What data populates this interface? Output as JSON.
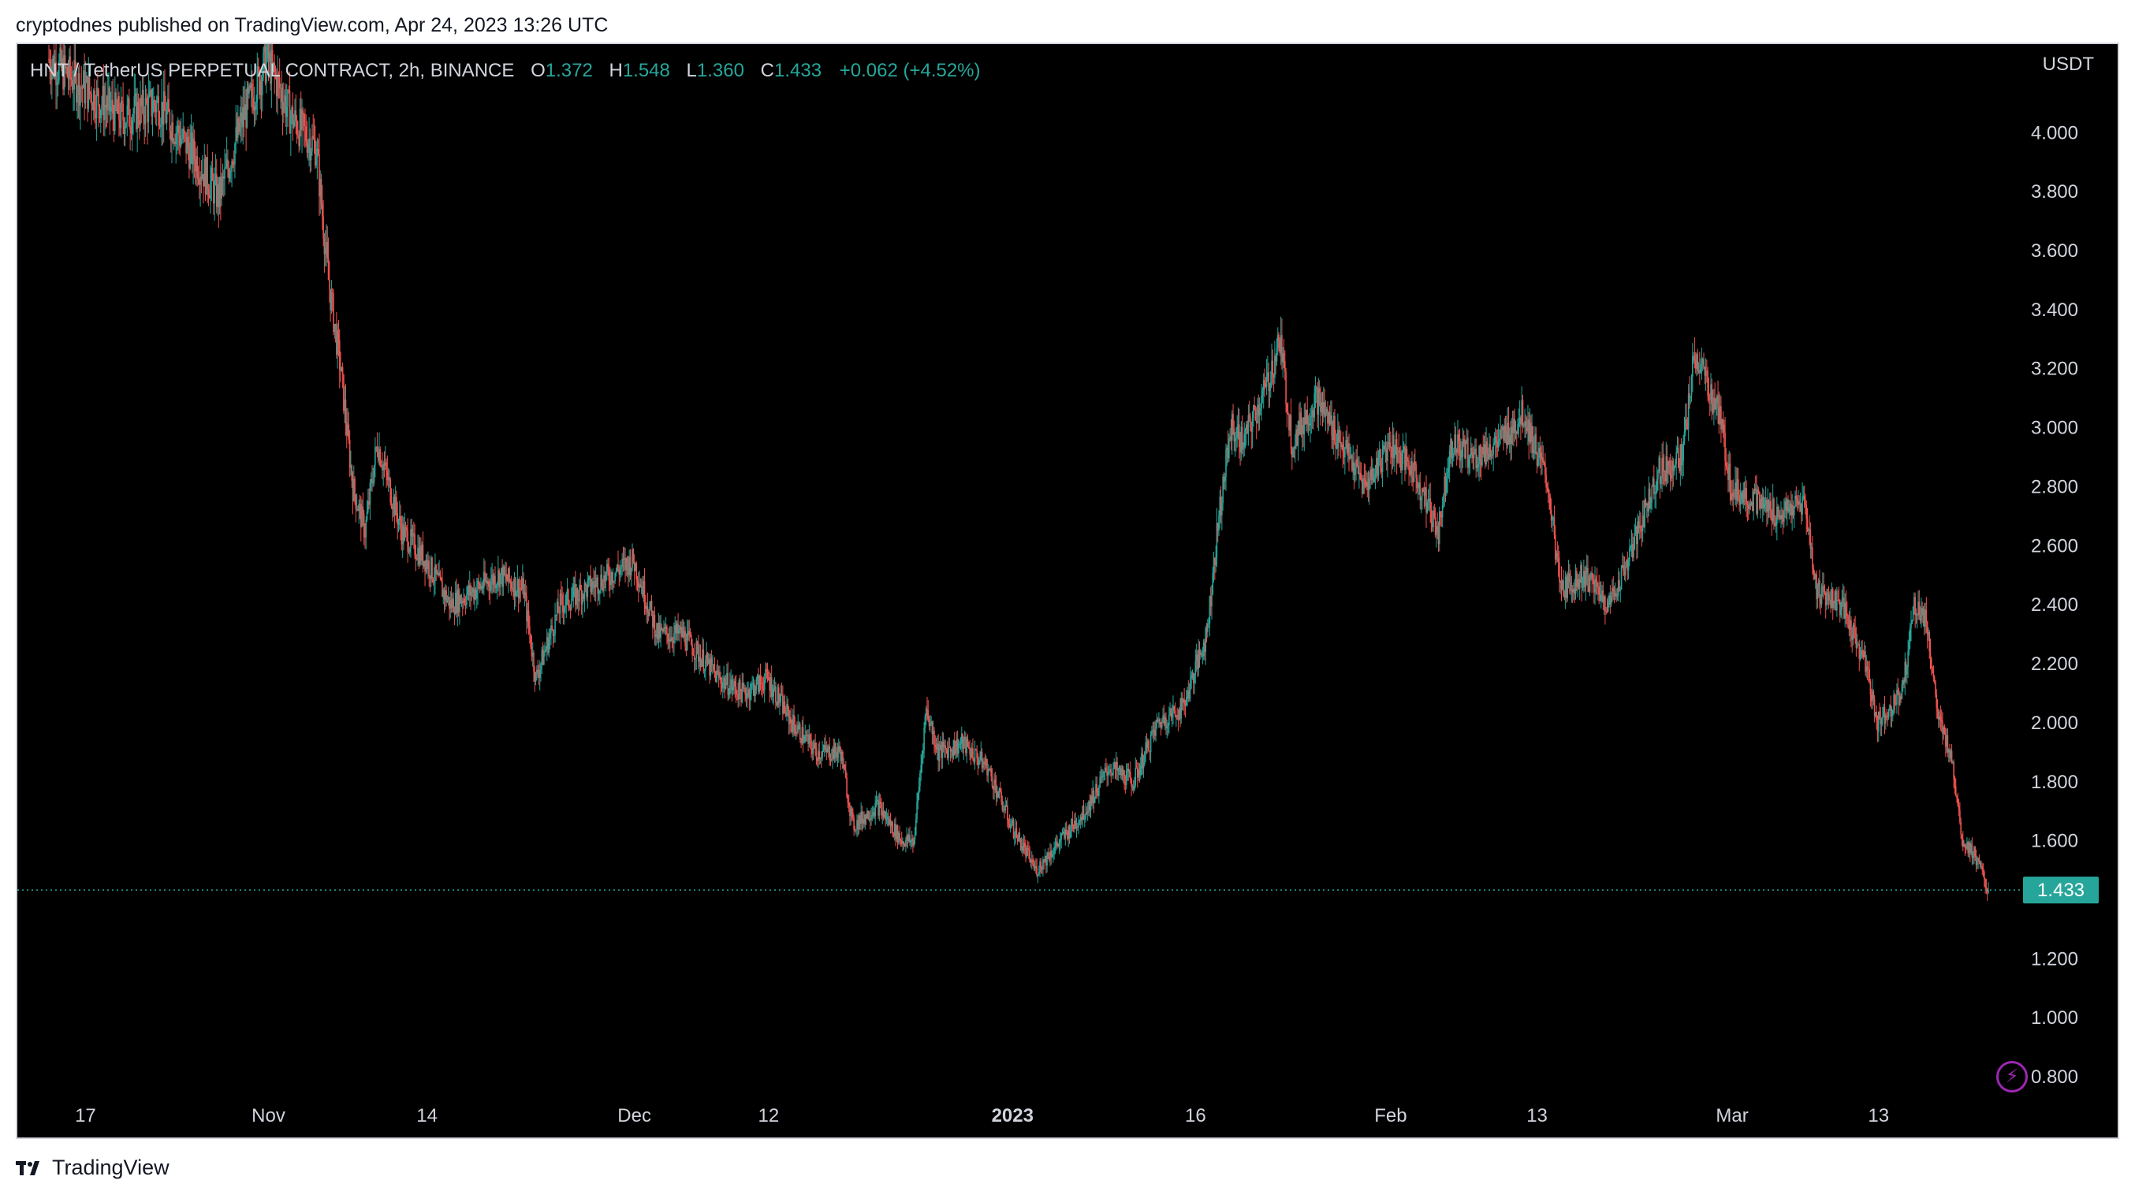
{
  "publisher": "cryptodnes published on TradingView.com, Apr 24, 2023 13:26 UTC",
  "footer": {
    "brand": "TradingView"
  },
  "colors": {
    "up": "#26a69a",
    "down": "#ef5350",
    "background": "#000000",
    "text": "#d1d4dc"
  },
  "chart_data": {
    "type": "candlestick",
    "symbol": "HNT / TetherUS PERPETUAL CONTRACT, 2h, BINANCE",
    "ohlc": {
      "o_label": "O",
      "o": "1.372",
      "h_label": "H",
      "h": "1.548",
      "l_label": "L",
      "l": "1.360",
      "c_label": "C",
      "c": "1.433",
      "change": "+0.062 (+4.52%)"
    },
    "currency": "USDT",
    "last_price": "1.433",
    "last_price_value": 1.433,
    "ylim": [
      0.72,
      4.3
    ],
    "y_ticks": [
      {
        "value": 4.0,
        "label": "4.000"
      },
      {
        "value": 3.8,
        "label": "3.800"
      },
      {
        "value": 3.6,
        "label": "3.600"
      },
      {
        "value": 3.4,
        "label": "3.400"
      },
      {
        "value": 3.2,
        "label": "3.200"
      },
      {
        "value": 3.0,
        "label": "3.000"
      },
      {
        "value": 2.8,
        "label": "2.800"
      },
      {
        "value": 2.6,
        "label": "2.600"
      },
      {
        "value": 2.4,
        "label": "2.400"
      },
      {
        "value": 2.2,
        "label": "2.200"
      },
      {
        "value": 2.0,
        "label": "2.000"
      },
      {
        "value": 1.8,
        "label": "1.800"
      },
      {
        "value": 1.6,
        "label": "1.600"
      },
      {
        "value": 1.2,
        "label": "1.200"
      },
      {
        "value": 1.0,
        "label": "1.000"
      },
      {
        "value": 0.8,
        "label": "0.800"
      }
    ],
    "x_range": [
      "2022-10-14",
      "2023-03-22"
    ],
    "x_ticks": [
      {
        "date": "2022-10-17",
        "label": "17",
        "bold": false
      },
      {
        "date": "2022-11-01",
        "label": "Nov",
        "bold": false
      },
      {
        "date": "2022-11-14",
        "label": "14",
        "bold": false
      },
      {
        "date": "2022-12-01",
        "label": "Dec",
        "bold": false
      },
      {
        "date": "2022-12-12",
        "label": "12",
        "bold": false
      },
      {
        "date": "2023-01-01",
        "label": "2023",
        "bold": true
      },
      {
        "date": "2023-01-16",
        "label": "16",
        "bold": false
      },
      {
        "date": "2023-02-01",
        "label": "Feb",
        "bold": false
      },
      {
        "date": "2023-02-13",
        "label": "13",
        "bold": false
      },
      {
        "date": "2023-03-01",
        "label": "Mar",
        "bold": false
      },
      {
        "date": "2023-03-13",
        "label": "13",
        "bold": false
      }
    ],
    "price_path": [
      [
        "2022-10-14",
        4.25
      ],
      [
        "2022-10-17",
        4.15
      ],
      [
        "2022-10-20",
        4.05
      ],
      [
        "2022-10-23",
        4.1
      ],
      [
        "2022-10-26",
        3.92
      ],
      [
        "2022-10-28",
        3.78
      ],
      [
        "2022-10-30",
        4.05
      ],
      [
        "2022-11-01",
        4.25
      ],
      [
        "2022-11-03",
        4.05
      ],
      [
        "2022-11-05",
        3.95
      ],
      [
        "2022-11-06",
        3.5
      ],
      [
        "2022-11-07",
        3.2
      ],
      [
        "2022-11-08",
        2.8
      ],
      [
        "2022-11-09",
        2.65
      ],
      [
        "2022-11-10",
        2.95
      ],
      [
        "2022-11-12",
        2.65
      ],
      [
        "2022-11-14",
        2.55
      ],
      [
        "2022-11-16",
        2.4
      ],
      [
        "2022-11-18",
        2.45
      ],
      [
        "2022-11-20",
        2.5
      ],
      [
        "2022-11-22",
        2.45
      ],
      [
        "2022-11-23",
        2.15
      ],
      [
        "2022-11-25",
        2.4
      ],
      [
        "2022-11-27",
        2.45
      ],
      [
        "2022-11-29",
        2.5
      ],
      [
        "2022-12-01",
        2.55
      ],
      [
        "2022-12-03",
        2.3
      ],
      [
        "2022-12-05",
        2.3
      ],
      [
        "2022-12-08",
        2.15
      ],
      [
        "2022-12-10",
        2.1
      ],
      [
        "2022-12-12",
        2.15
      ],
      [
        "2022-12-14",
        2.0
      ],
      [
        "2022-12-16",
        1.9
      ],
      [
        "2022-12-18",
        1.9
      ],
      [
        "2022-12-19",
        1.65
      ],
      [
        "2022-12-21",
        1.72
      ],
      [
        "2022-12-23",
        1.6
      ],
      [
        "2022-12-24",
        1.6
      ],
      [
        "2022-12-25",
        2.05
      ],
      [
        "2022-12-26",
        1.9
      ],
      [
        "2022-12-28",
        1.93
      ],
      [
        "2022-12-30",
        1.85
      ],
      [
        "2023-01-01",
        1.65
      ],
      [
        "2023-01-03",
        1.5
      ],
      [
        "2023-01-05",
        1.6
      ],
      [
        "2023-01-07",
        1.7
      ],
      [
        "2023-01-09",
        1.85
      ],
      [
        "2023-01-11",
        1.8
      ],
      [
        "2023-01-13",
        2.0
      ],
      [
        "2023-01-15",
        2.05
      ],
      [
        "2023-01-17",
        2.3
      ],
      [
        "2023-01-18",
        2.7
      ],
      [
        "2023-01-19",
        3.0
      ],
      [
        "2023-01-20",
        2.95
      ],
      [
        "2023-01-22",
        3.15
      ],
      [
        "2023-01-23",
        3.3
      ],
      [
        "2023-01-24",
        2.95
      ],
      [
        "2023-01-26",
        3.1
      ],
      [
        "2023-01-28",
        2.95
      ],
      [
        "2023-01-30",
        2.8
      ],
      [
        "2023-02-01",
        2.95
      ],
      [
        "2023-02-03",
        2.85
      ],
      [
        "2023-02-05",
        2.65
      ],
      [
        "2023-02-06",
        2.95
      ],
      [
        "2023-02-08",
        2.9
      ],
      [
        "2023-02-10",
        2.95
      ],
      [
        "2023-02-12",
        3.05
      ],
      [
        "2023-02-14",
        2.8
      ],
      [
        "2023-02-15",
        2.45
      ],
      [
        "2023-02-17",
        2.5
      ],
      [
        "2023-02-19",
        2.4
      ],
      [
        "2023-02-21",
        2.6
      ],
      [
        "2023-02-23",
        2.85
      ],
      [
        "2023-02-25",
        2.9
      ],
      [
        "2023-02-26",
        3.25
      ],
      [
        "2023-02-28",
        3.05
      ],
      [
        "2023-03-01",
        2.8
      ],
      [
        "2023-03-03",
        2.75
      ],
      [
        "2023-03-05",
        2.7
      ],
      [
        "2023-03-07",
        2.75
      ],
      [
        "2023-03-08",
        2.45
      ],
      [
        "2023-03-10",
        2.4
      ],
      [
        "2023-03-12",
        2.2
      ],
      [
        "2023-03-13",
        2.0
      ],
      [
        "2023-03-15",
        2.1
      ],
      [
        "2023-03-16",
        2.4
      ],
      [
        "2023-03-17",
        2.35
      ],
      [
        "2023-03-18",
        2.0
      ],
      [
        "2023-03-19",
        1.9
      ],
      [
        "2023-03-20",
        1.6
      ],
      [
        "2023-03-21",
        1.55
      ],
      [
        "2023-03-22",
        1.433
      ]
    ],
    "grid": false,
    "legend": "top-left"
  }
}
